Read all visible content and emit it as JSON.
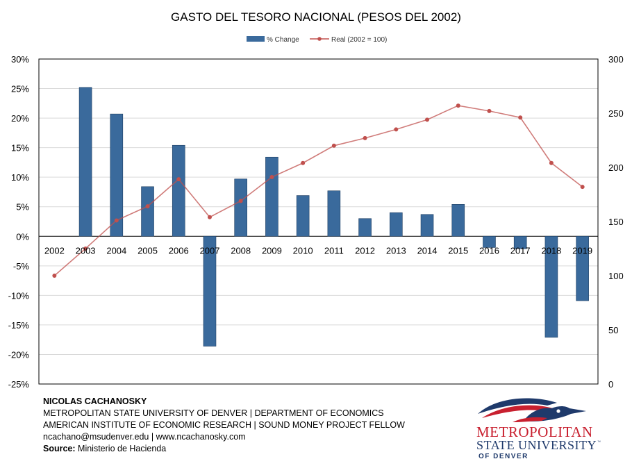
{
  "chart_data": {
    "type": "bar+line",
    "title": "GASTO DEL TESORO NACIONAL (PESOS DEL 2002)",
    "categories": [
      "2002",
      "2003",
      "2004",
      "2005",
      "2006",
      "2007",
      "2008",
      "2009",
      "2010",
      "2011",
      "2012",
      "2013",
      "2014",
      "2015",
      "2016",
      "2017",
      "2018",
      "2019"
    ],
    "series": [
      {
        "name": "% Change",
        "type": "bar",
        "axis": "left",
        "color": "#3A6A9C",
        "values": [
          null,
          25.2,
          20.7,
          8.4,
          15.4,
          -18.6,
          9.7,
          13.4,
          6.9,
          7.7,
          3.0,
          4.0,
          3.7,
          5.4,
          -1.9,
          -2.1,
          -17.1,
          -10.9
        ]
      },
      {
        "name": "Real (2002 = 100)",
        "type": "line",
        "axis": "right",
        "color": "#C0504D",
        "values": [
          100,
          125,
          151,
          164,
          189,
          154,
          169,
          191,
          204,
          220,
          227,
          235,
          244,
          257,
          252,
          246,
          204,
          182
        ]
      }
    ],
    "y_left": {
      "min": -25,
      "max": 30,
      "step": 5,
      "ticks": [
        "-25%",
        "-20%",
        "-15%",
        "-10%",
        "-5%",
        "0%",
        "5%",
        "10%",
        "15%",
        "20%",
        "25%",
        "30%"
      ]
    },
    "y_right": {
      "min": 0,
      "max": 300,
      "step": 50,
      "ticks": [
        "0",
        "50",
        "100",
        "150",
        "200",
        "250",
        "300"
      ]
    },
    "grid": true,
    "legend_position": "top-center"
  },
  "footer": {
    "author": "NICOLAS CACHANOSKY",
    "line1": "METROPOLITAN STATE UNIVERSITY OF DENVER | DEPARTMENT OF ECONOMICS",
    "line2": "AMERICAN INSTITUTE OF ECONOMIC RESEARCH | SOUND MONEY PROJECT FELLOW",
    "line3": "ncachano@msudenver.edu  |  www.ncachanosky.com",
    "source_label": "Source:",
    "source_value": "Ministerio de Hacienda"
  },
  "logo": {
    "line1": "METROPOLITAN",
    "line2": "STATE UNIVERSITY",
    "tm": "™",
    "line3": "OF DENVER",
    "red": "#C8202F",
    "navy": "#1F3A6B"
  }
}
